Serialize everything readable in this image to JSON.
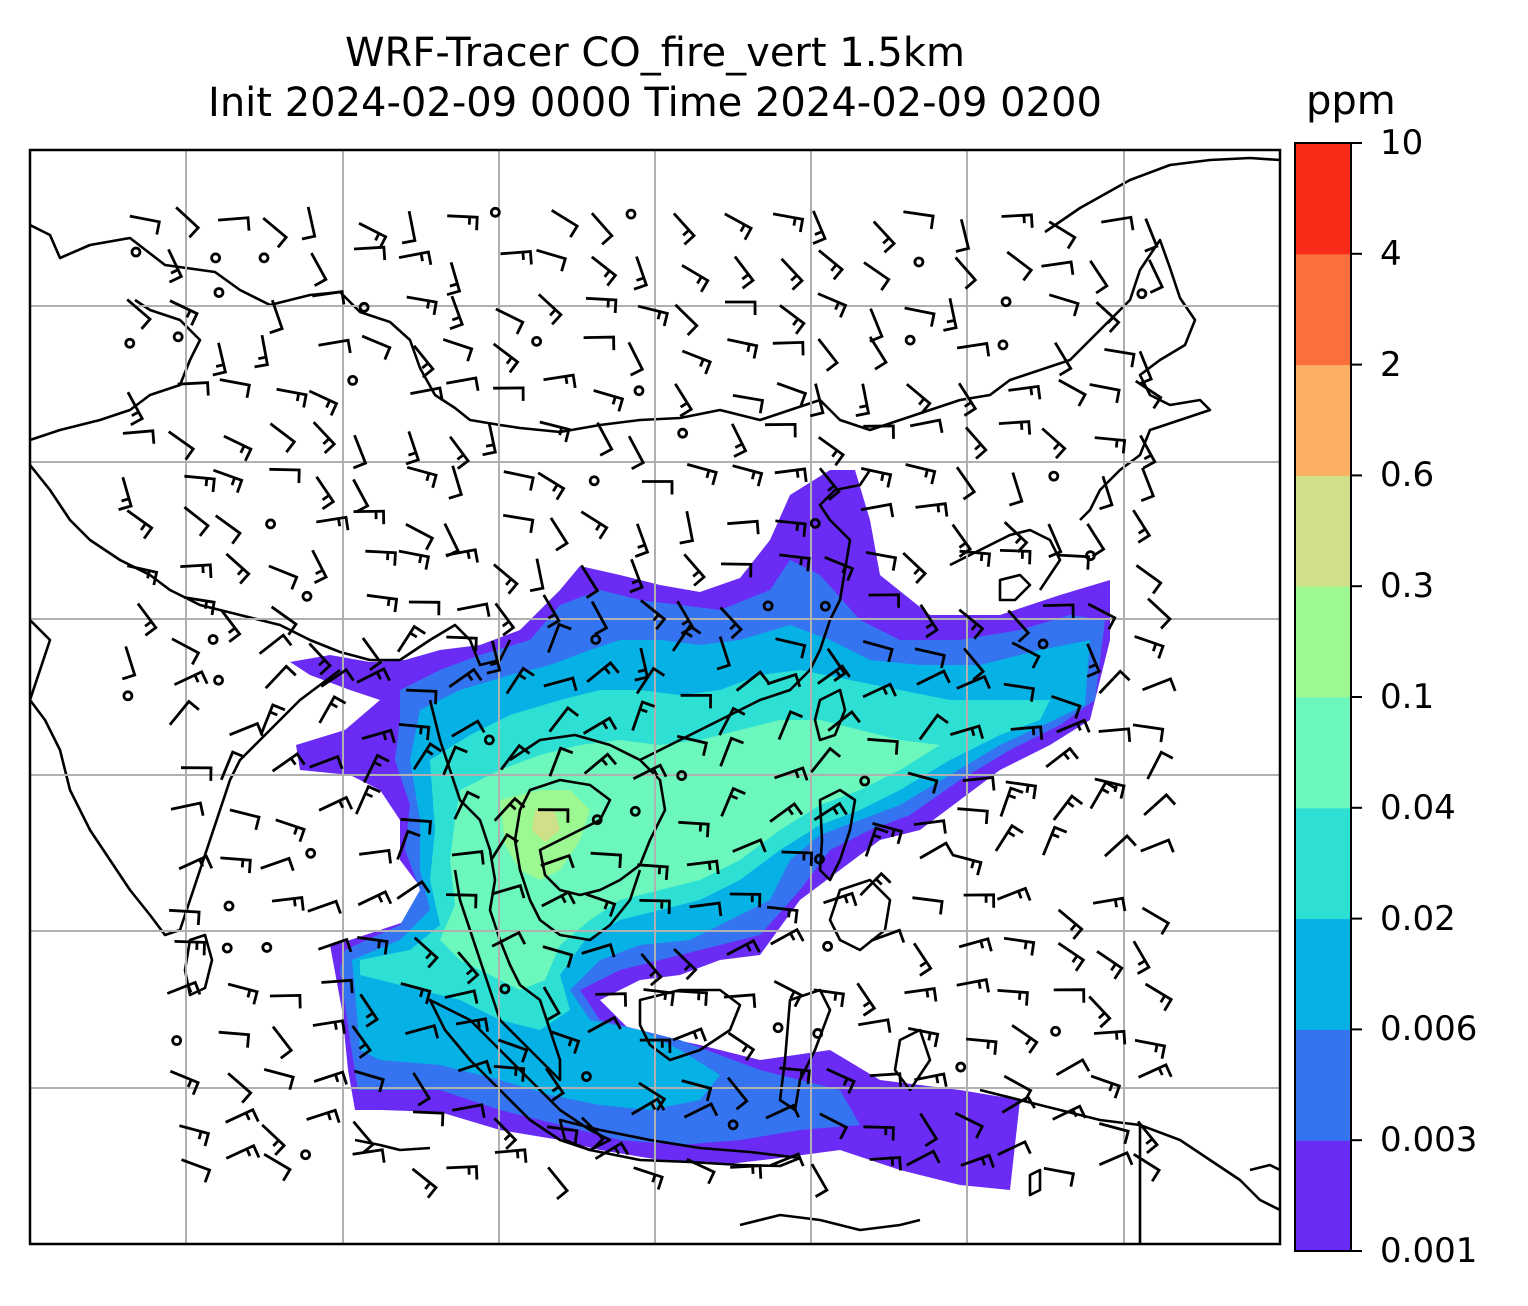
{
  "title": {
    "line1": "WRF-Tracer CO_fire_vert 1.5km",
    "line2": "Init 2024-02-09 0000 Time 2024-02-09 0200"
  },
  "colorbar": {
    "unit": "ppm",
    "ticks": [
      "0.001",
      "0.003",
      "0.006",
      "0.02",
      "0.04",
      "0.1",
      "0.3",
      "0.6",
      "2",
      "4",
      "10"
    ],
    "colors": [
      "#6a2cf5",
      "#3574f0",
      "#06b1e6",
      "#2ee0d3",
      "#6cf7bd",
      "#9cf890",
      "#cfe088",
      "#fbb063",
      "#fb6f3c",
      "#fa2a18"
    ]
  },
  "map": {
    "features": [
      "coastlines",
      "gridlines",
      "wind-barbs",
      "co-plume"
    ],
    "gridline_color": "#b0b0b0",
    "coast_color": "#000000"
  }
}
